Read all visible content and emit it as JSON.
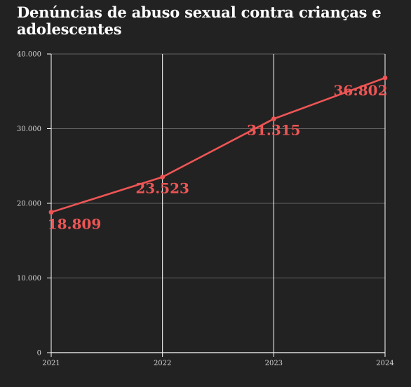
{
  "colors": {
    "background": "#222222",
    "title": "#ffffff",
    "grid": "#7a7a7a",
    "axis": "#ffffff",
    "series": "#ee5555",
    "tick_label": "#d6d6d6"
  },
  "chart_data": {
    "type": "line",
    "title": "Denúncias de abuso sexual contra crianças e adolescentes",
    "xlabel": "",
    "ylabel": "",
    "x": [
      "2021",
      "2022",
      "2023",
      "2024"
    ],
    "series": [
      {
        "values": [
          18809,
          23523,
          31315,
          36802
        ],
        "data_labels": [
          "18.809",
          "23.523",
          "31.315",
          "36:802"
        ]
      }
    ],
    "ylim": [
      0,
      40000
    ],
    "yticks": [
      0,
      10000,
      20000,
      30000,
      40000
    ],
    "ytick_labels": [
      "0",
      "10.000",
      "20.000",
      "30.000",
      "40.000"
    ],
    "grid": true,
    "legend": "none"
  }
}
